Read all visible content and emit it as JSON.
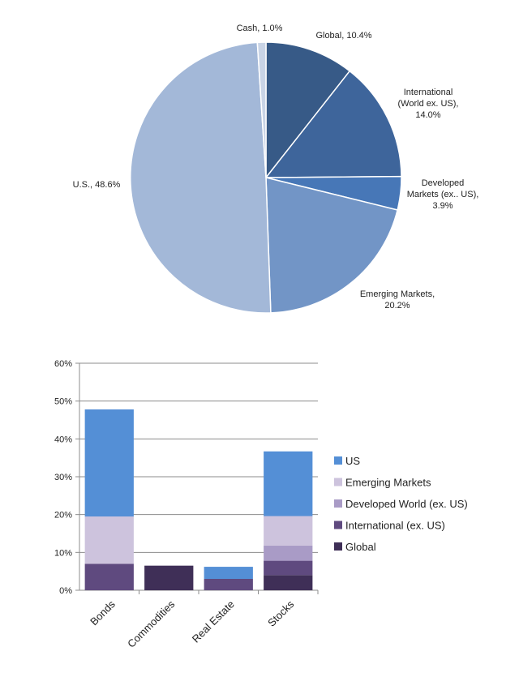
{
  "chart_data": [
    {
      "type": "pie",
      "title": "",
      "slices": [
        {
          "label": [
            "Global, 10.4%"
          ],
          "value": 10.4,
          "color": "#375a87"
        },
        {
          "label": [
            "International",
            "(World ex. US),",
            "14.0%"
          ],
          "value": 14.0,
          "color": "#3e659b"
        },
        {
          "label": [
            "Developed",
            "Markets (ex.. US),",
            "3.9%"
          ],
          "value": 3.9,
          "color": "#4777b7"
        },
        {
          "label": [
            "Emerging Markets,",
            "20.2%"
          ],
          "value": 20.2,
          "color": "#7295c6"
        },
        {
          "label": [
            "U.S.,  48.6%"
          ],
          "value": 48.6,
          "color": "#a3b8d8"
        },
        {
          "label": [
            "Cash, 1.0%"
          ],
          "value": 1.0,
          "color": "#c9d4e6"
        }
      ]
    },
    {
      "type": "bar",
      "stacked": true,
      "title": "",
      "xlabel": "",
      "ylabel": "",
      "categories": [
        "Bonds",
        "Commodities",
        "Real Estate",
        "Stocks"
      ],
      "ylim": [
        0,
        60
      ],
      "yticks": [
        "0%",
        "10%",
        "20%",
        "30%",
        "40%",
        "50%",
        "60%"
      ],
      "grid": true,
      "legend_position": "right",
      "series": [
        {
          "name": "Global",
          "color": "#3f2f57",
          "values": [
            0,
            6.5,
            0,
            4
          ]
        },
        {
          "name": "International (ex. US)",
          "color": "#5f4a7f",
          "values": [
            7,
            0,
            3,
            3.8
          ]
        },
        {
          "name": "Developed World (ex. US)",
          "color": "#a99bc6",
          "values": [
            0,
            0,
            0,
            4
          ]
        },
        {
          "name": "Emerging Markets",
          "color": "#cdc3dd",
          "values": [
            12.5,
            0,
            0,
            7.8
          ]
        },
        {
          "name": "US",
          "color": "#548fd6",
          "values": [
            28.3,
            0,
            3.2,
            17.1
          ]
        }
      ]
    }
  ]
}
